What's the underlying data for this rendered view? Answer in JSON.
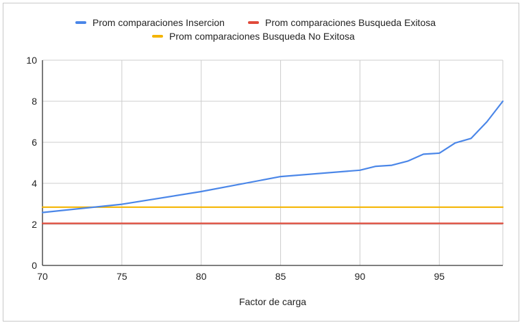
{
  "chart_data": {
    "type": "line",
    "title": "",
    "xlabel": "Factor de carga",
    "ylabel": "",
    "xlim": [
      70,
      99
    ],
    "ylim": [
      0,
      10
    ],
    "x_ticks": [
      70,
      75,
      80,
      85,
      90,
      95
    ],
    "y_ticks": [
      0,
      2,
      4,
      6,
      8,
      10
    ],
    "grid": true,
    "legend_position": "top",
    "series": [
      {
        "name": "Prom comparaciones Insercion",
        "color": "#4a86e8",
        "points": [
          [
            70,
            2.58
          ],
          [
            75,
            2.98
          ],
          [
            80,
            3.6
          ],
          [
            85,
            4.33
          ],
          [
            90,
            4.64
          ],
          [
            91,
            4.83
          ],
          [
            92,
            4.88
          ],
          [
            93,
            5.08
          ],
          [
            94,
            5.42
          ],
          [
            95,
            5.47
          ],
          [
            96,
            5.97
          ],
          [
            97,
            6.19
          ],
          [
            98,
            7.0
          ],
          [
            99,
            8.0
          ]
        ]
      },
      {
        "name": "Prom comparaciones Busqueda Exitosa",
        "color": "#e04a3a",
        "points": [
          [
            70,
            2.05
          ],
          [
            99,
            2.05
          ]
        ]
      },
      {
        "name": "Prom comparaciones Busqueda No Exitosa",
        "color": "#f4b400",
        "points": [
          [
            70,
            2.84
          ],
          [
            99,
            2.84
          ]
        ]
      }
    ]
  }
}
